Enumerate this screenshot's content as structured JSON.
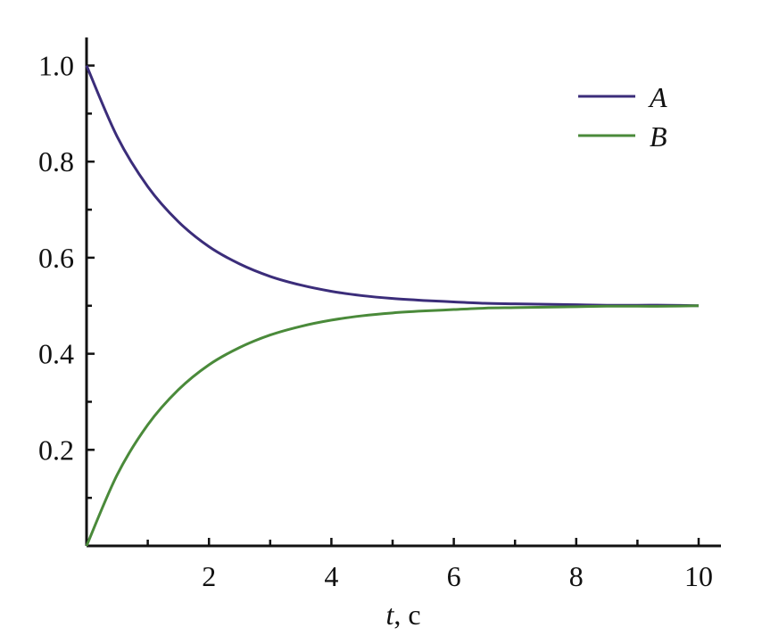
{
  "chart_data": {
    "type": "line",
    "title": "",
    "xlabel_var": "t",
    "xlabel_unit": ", c",
    "ylabel": "",
    "xlim": [
      0,
      10
    ],
    "ylim": [
      0,
      1.05
    ],
    "x_ticks": [
      2,
      4,
      6,
      8,
      10
    ],
    "x_minor_ticks": [
      1,
      3,
      5,
      7,
      9
    ],
    "x_tick_labels": [
      "2",
      "4",
      "6",
      "8",
      "10"
    ],
    "y_ticks": [
      0.2,
      0.4,
      0.6,
      0.8,
      1.0
    ],
    "y_minor_ticks": [
      0.1,
      0.3,
      0.5,
      0.7,
      0.9
    ],
    "y_tick_labels": [
      "0.2",
      "0.4",
      "0.6",
      "0.8",
      "1.0"
    ],
    "grid": false,
    "legend_position": "top-right",
    "x": [
      0,
      0.5,
      1,
      1.5,
      2,
      2.5,
      3,
      3.5,
      4,
      4.5,
      5,
      5.5,
      6,
      6.5,
      7,
      7.5,
      8,
      8.5,
      9,
      9.5,
      10
    ],
    "series": [
      {
        "name": "A",
        "color": "#3b2d7a",
        "values": [
          1.0,
          0.852,
          0.748,
          0.675,
          0.623,
          0.587,
          0.561,
          0.543,
          0.53,
          0.521,
          0.515,
          0.511,
          0.508,
          0.505,
          0.504,
          0.503,
          0.502,
          0.501,
          0.501,
          0.501,
          0.5
        ]
      },
      {
        "name": "B",
        "color": "#4a8a3a",
        "values": [
          0.0,
          0.148,
          0.252,
          0.325,
          0.377,
          0.413,
          0.439,
          0.457,
          0.47,
          0.479,
          0.485,
          0.489,
          0.492,
          0.495,
          0.496,
          0.497,
          0.498,
          0.499,
          0.499,
          0.499,
          0.5
        ]
      }
    ]
  }
}
